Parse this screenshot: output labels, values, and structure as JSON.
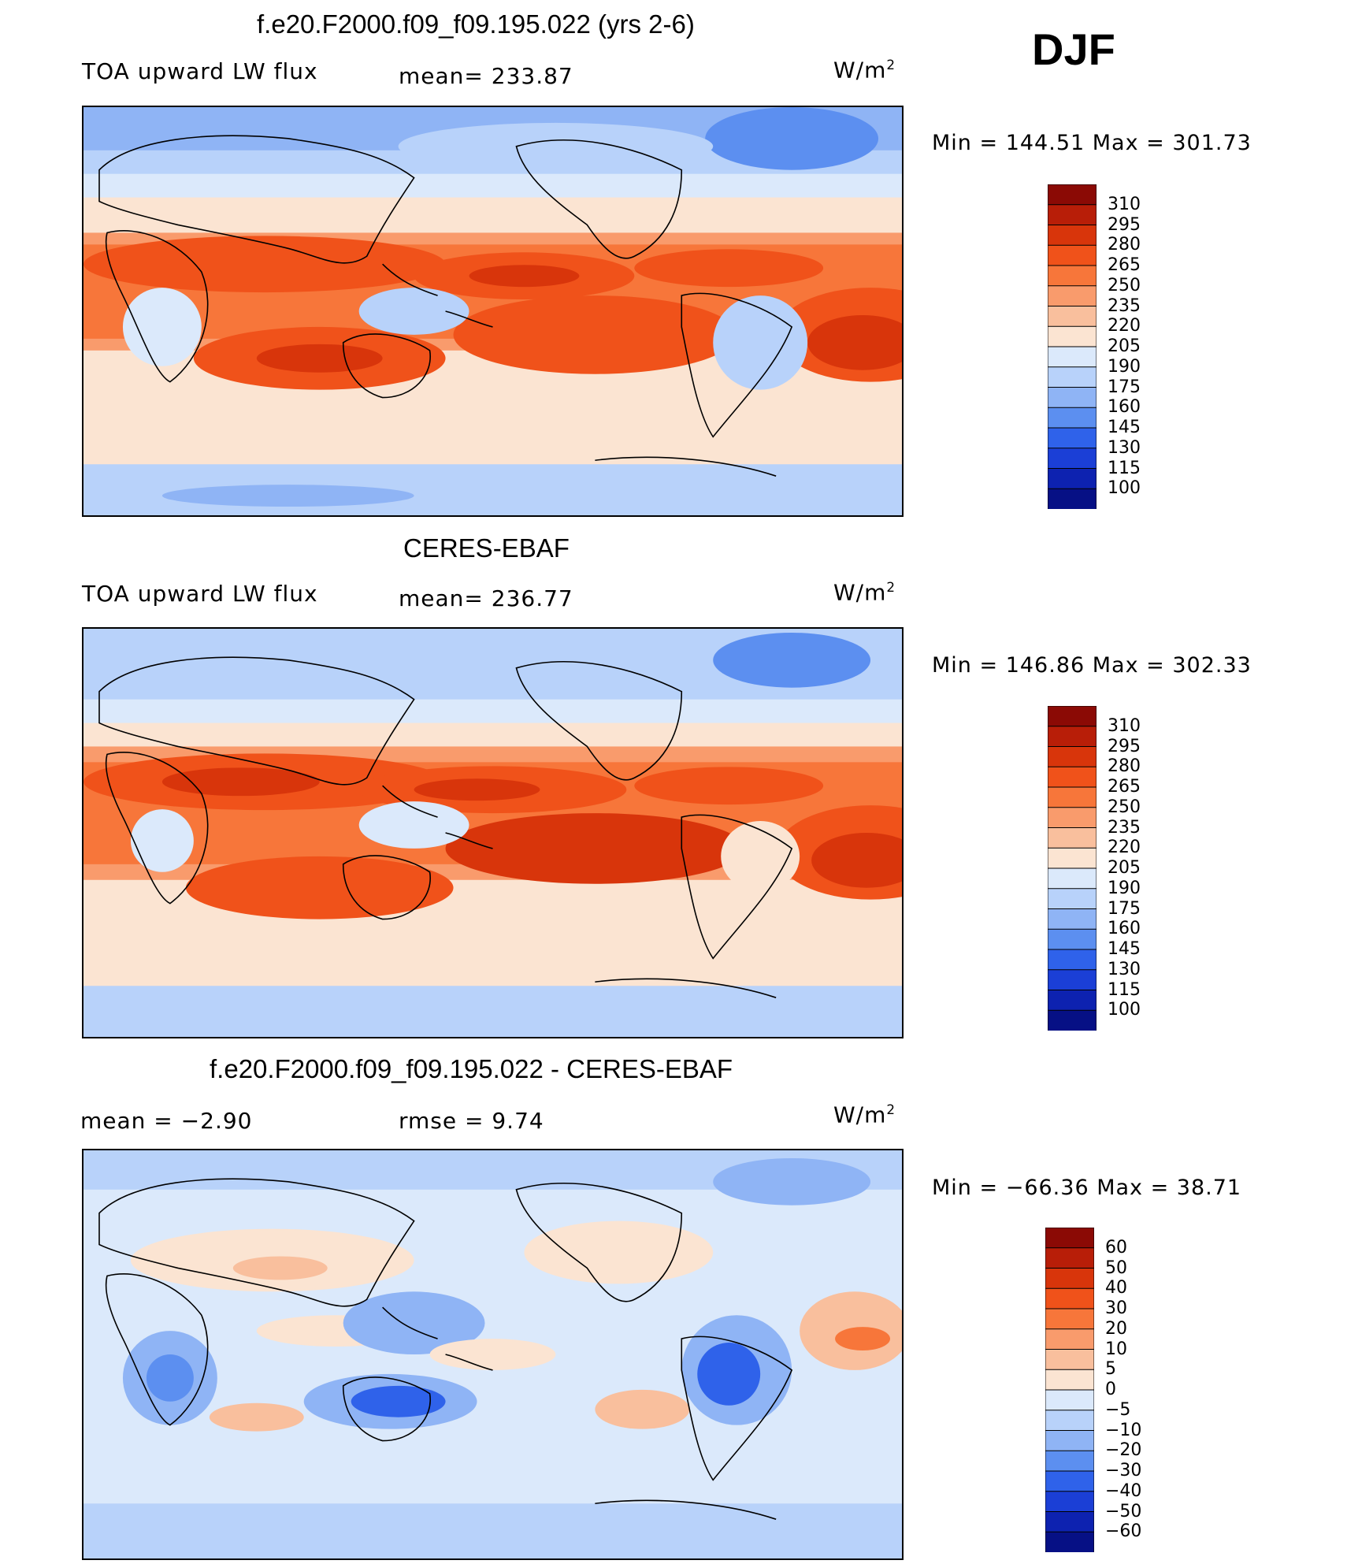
{
  "header": {
    "season": "DJF"
  },
  "panels": [
    {
      "title": "f.e20.F2000.f09_f09.195.022 (yrs 2-6)",
      "left_label": "TOA upward LW flux",
      "mid_label": "mean=  233.87",
      "units": "W/m",
      "units_sup": "2",
      "minmax": "Min  =  144.51  Max  =  301.73",
      "colorbar": {
        "ticks": [
          "310",
          "295",
          "280",
          "265",
          "250",
          "235",
          "220",
          "205",
          "190",
          "175",
          "160",
          "145",
          "130",
          "115",
          "100"
        ],
        "colors": [
          "#8b0a05",
          "#b81e08",
          "#d8350b",
          "#f0521a",
          "#f7763a",
          "#f99b6c",
          "#f9bf9d",
          "#fbe4d2",
          "#dbe9fb",
          "#b8d2fa",
          "#8fb4f5",
          "#5c8ff0",
          "#2f62ea",
          "#1b3fd6",
          "#0d22b0",
          "#061085"
        ]
      }
    },
    {
      "title": "CERES-EBAF",
      "left_label": "TOA upward LW flux",
      "mid_label": "mean=  236.77",
      "units": "W/m",
      "units_sup": "2",
      "minmax": "Min  =  146.86  Max  =  302.33",
      "colorbar": {
        "ticks": [
          "310",
          "295",
          "280",
          "265",
          "250",
          "235",
          "220",
          "205",
          "190",
          "175",
          "160",
          "145",
          "130",
          "115",
          "100"
        ],
        "colors": [
          "#8b0a05",
          "#b81e08",
          "#d8350b",
          "#f0521a",
          "#f7763a",
          "#f99b6c",
          "#f9bf9d",
          "#fbe4d2",
          "#dbe9fb",
          "#b8d2fa",
          "#8fb4f5",
          "#5c8ff0",
          "#2f62ea",
          "#1b3fd6",
          "#0d22b0",
          "#061085"
        ]
      }
    },
    {
      "title": "f.e20.F2000.f09_f09.195.022 - CERES-EBAF",
      "left_label": "mean  =    −2.90",
      "mid_label": "rmse  =     9.74",
      "units": "W/m",
      "units_sup": "2",
      "minmax": "Min  =  −66.36  Max  =    38.71",
      "colorbar": {
        "ticks": [
          "60",
          "50",
          "40",
          "30",
          "20",
          "10",
          "5",
          "0",
          "−5",
          "−10",
          "−20",
          "−30",
          "−40",
          "−50",
          "−60"
        ],
        "colors": [
          "#8b0a05",
          "#b81e08",
          "#d8350b",
          "#f0521a",
          "#f7763a",
          "#f99b6c",
          "#f9bf9d",
          "#fbe4d2",
          "#dbe9fb",
          "#b8d2fa",
          "#8fb4f5",
          "#5c8ff0",
          "#2f62ea",
          "#1b3fd6",
          "#0d22b0",
          "#061085"
        ]
      }
    }
  ]
}
